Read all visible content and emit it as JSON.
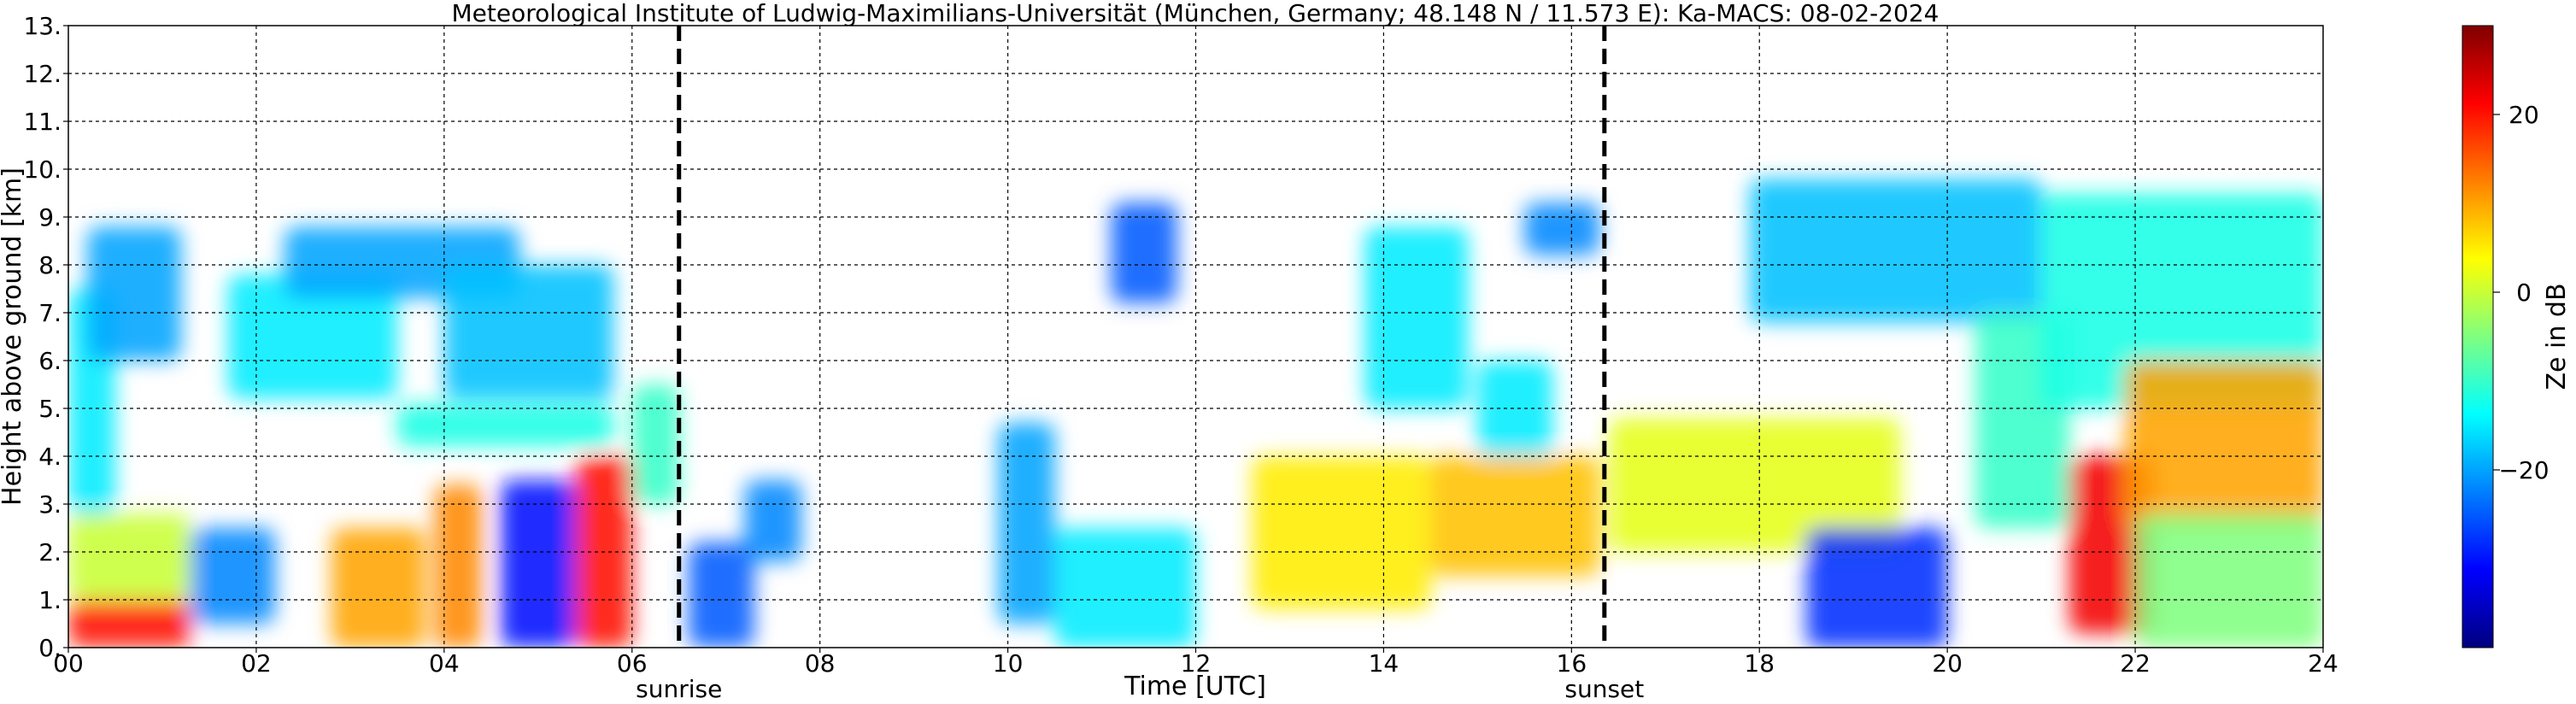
{
  "chart_data": {
    "type": "heatmap",
    "title": "Meteorological Institute of Ludwig-Maximilians-Universität (München, Germany; 48.148 N / 11.573 E):    Ka-MACS: 08-02-2024",
    "xlabel": "Time [UTC]",
    "ylabel": "Height above ground [km]",
    "xlim": [
      0,
      24
    ],
    "ylim": [
      0,
      13
    ],
    "x_ticks": [
      0,
      2,
      4,
      6,
      8,
      10,
      12,
      14,
      16,
      18,
      20,
      22,
      24
    ],
    "x_tick_labels": [
      "00",
      "02",
      "04",
      "06",
      "08",
      "10",
      "12",
      "14",
      "16",
      "18",
      "20",
      "22",
      "24"
    ],
    "y_ticks": [
      0,
      1,
      2,
      3,
      4,
      5,
      6,
      7,
      8,
      9,
      10,
      11,
      12,
      13
    ],
    "y_tick_labels": [
      "0.",
      "1.",
      "2.",
      "3.",
      "4.",
      "5.",
      "6.",
      "7.",
      "8.",
      "9.",
      "10.",
      "11.",
      "12.",
      "13."
    ],
    "grid": true,
    "markers": [
      {
        "label": "sunrise",
        "x": 6.5
      },
      {
        "label": "sunset",
        "x": 16.35
      }
    ],
    "colorbar": {
      "label": "Ze in dB",
      "min": -40,
      "max": 30,
      "ticks": [
        20,
        0,
        -20
      ],
      "tick_labels": [
        "20",
        "0",
        "−20"
      ],
      "colormap": "jet"
    },
    "echo_regions": [
      {
        "x": [
          0.0,
          1.3
        ],
        "y": [
          0.0,
          1.0
        ],
        "ze": 20
      },
      {
        "x": [
          0.0,
          1.3
        ],
        "y": [
          1.0,
          2.8
        ],
        "ze": 0
      },
      {
        "x": [
          0.0,
          0.5
        ],
        "y": [
          2.8,
          7.5
        ],
        "ze": -15
      },
      {
        "x": [
          0.2,
          1.2
        ],
        "y": [
          6.0,
          8.8
        ],
        "ze": -20
      },
      {
        "x": [
          1.3,
          2.2
        ],
        "y": [
          0.5,
          2.5
        ],
        "ze": -22
      },
      {
        "x": [
          1.7,
          3.5
        ],
        "y": [
          5.2,
          7.8
        ],
        "ze": -15
      },
      {
        "x": [
          2.3,
          4.8
        ],
        "y": [
          7.3,
          8.8
        ],
        "ze": -20
      },
      {
        "x": [
          2.8,
          3.8
        ],
        "y": [
          0.0,
          2.5
        ],
        "ze": 10
      },
      {
        "x": [
          3.5,
          5.8
        ],
        "y": [
          4.2,
          5.1
        ],
        "ze": -12
      },
      {
        "x": [
          4.0,
          5.8
        ],
        "y": [
          5.2,
          8.0
        ],
        "ze": -18
      },
      {
        "x": [
          3.9,
          4.4
        ],
        "y": [
          0.0,
          3.4
        ],
        "ze": 12
      },
      {
        "x": [
          4.6,
          5.4
        ],
        "y": [
          0.0,
          3.5
        ],
        "ze": -30
      },
      {
        "x": [
          5.4,
          6.0
        ],
        "y": [
          0.0,
          4.0
        ],
        "ze": 20
      },
      {
        "x": [
          6.0,
          6.5
        ],
        "y": [
          3.0,
          5.5
        ],
        "ze": -10
      },
      {
        "x": [
          6.6,
          7.3
        ],
        "y": [
          0.0,
          2.2
        ],
        "ze": -25
      },
      {
        "x": [
          7.2,
          7.8
        ],
        "y": [
          1.8,
          3.5
        ],
        "ze": -22
      },
      {
        "x": [
          9.9,
          10.5
        ],
        "y": [
          0.5,
          4.7
        ],
        "ze": -20
      },
      {
        "x": [
          10.5,
          12.0
        ],
        "y": [
          0.0,
          2.5
        ],
        "ze": -15
      },
      {
        "x": [
          11.1,
          11.8
        ],
        "y": [
          7.2,
          9.3
        ],
        "ze": -25
      },
      {
        "x": [
          12.6,
          14.5
        ],
        "y": [
          0.8,
          4.0
        ],
        "ze": 5
      },
      {
        "x": [
          13.8,
          14.9
        ],
        "y": [
          5.0,
          8.8
        ],
        "ze": -15
      },
      {
        "x": [
          14.5,
          16.3
        ],
        "y": [
          1.5,
          4.0
        ],
        "ze": 8
      },
      {
        "x": [
          15.0,
          15.8
        ],
        "y": [
          4.0,
          6.0
        ],
        "ze": -15
      },
      {
        "x": [
          15.5,
          16.3
        ],
        "y": [
          8.2,
          9.3
        ],
        "ze": -22
      },
      {
        "x": [
          16.4,
          19.5
        ],
        "y": [
          2.0,
          4.8
        ],
        "ze": 2
      },
      {
        "x": [
          17.9,
          21.0
        ],
        "y": [
          6.8,
          9.8
        ],
        "ze": -18
      },
      {
        "x": [
          18.5,
          20.0
        ],
        "y": [
          0.0,
          2.5
        ],
        "ze": -28
      },
      {
        "x": [
          20.3,
          21.3
        ],
        "y": [
          2.5,
          7.0
        ],
        "ze": -10
      },
      {
        "x": [
          21.0,
          24.0
        ],
        "y": [
          5.0,
          9.5
        ],
        "ze": -12
      },
      {
        "x": [
          21.3,
          22.2
        ],
        "y": [
          0.3,
          4.0
        ],
        "ze": 22
      },
      {
        "x": [
          21.9,
          24.0
        ],
        "y": [
          2.5,
          6.0
        ],
        "ze": 10
      },
      {
        "x": [
          22.0,
          24.0
        ],
        "y": [
          0.0,
          2.8
        ],
        "ze": -5
      }
    ]
  }
}
